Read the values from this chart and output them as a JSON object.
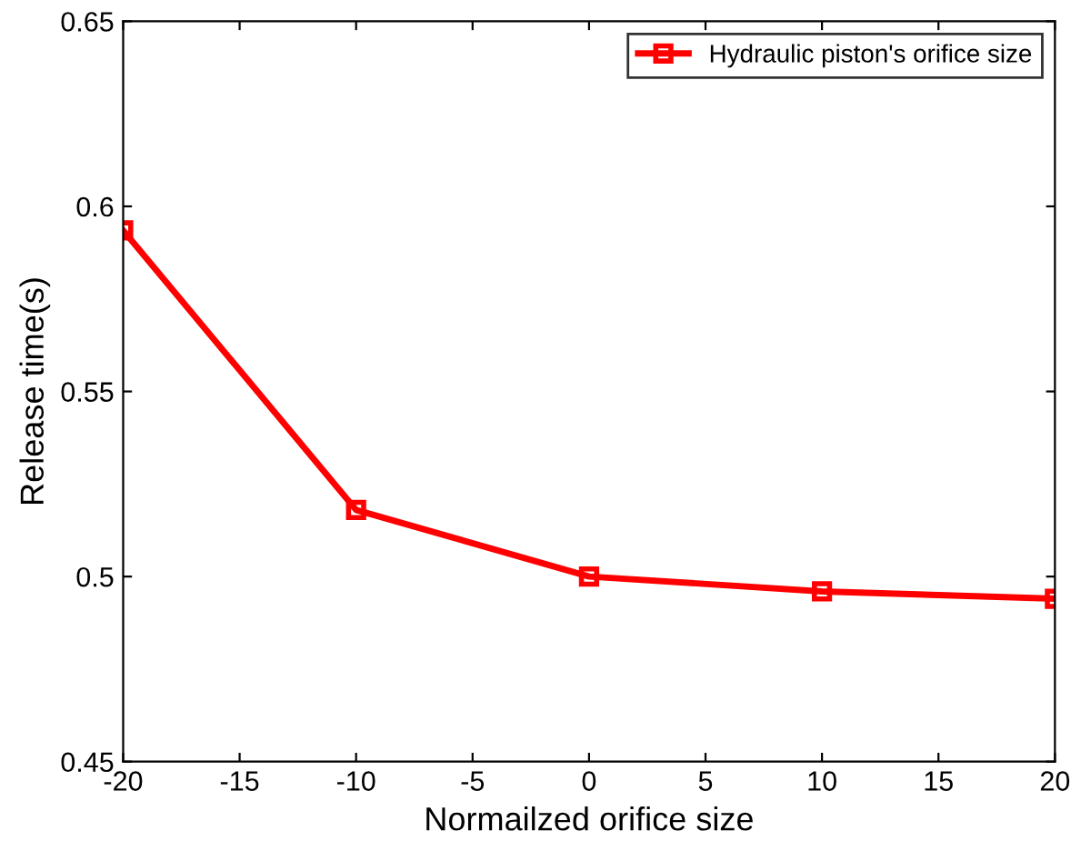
{
  "chart_data": {
    "type": "line",
    "xlabel": "Normailzed orifice size",
    "ylabel": "Release time(s)",
    "x": [
      -20,
      -10,
      0,
      10,
      20
    ],
    "series": [
      {
        "name": "Hydraulic piston's orifice size",
        "color": "#ff0000",
        "values": [
          0.5935,
          0.518,
          0.5,
          0.496,
          0.494
        ]
      }
    ],
    "xlim": [
      -20,
      20
    ],
    "xticks": [
      -20,
      -15,
      -10,
      -5,
      0,
      5,
      10,
      15,
      20
    ],
    "ylim": [
      0.45,
      0.65
    ],
    "yticks": [
      0.45,
      0.5,
      0.55,
      0.6,
      0.65
    ],
    "grid": false,
    "legend": "top right",
    "marker": "square",
    "line_style": "solid"
  }
}
